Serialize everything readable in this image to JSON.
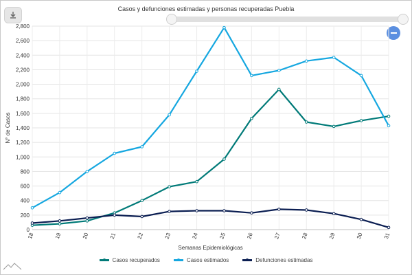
{
  "title": "Casos y defunciones estimadas y personas recuperadas Puebla",
  "icons": {
    "download": "download-icon",
    "zoom_out": "minus-icon",
    "logo": "mountain-logo-icon"
  },
  "chart_data": {
    "type": "line",
    "title": "Casos y defunciones estimadas y personas recuperadas Puebla",
    "xlabel": "Semanas Epidemiológicas",
    "ylabel": "N° de Casos",
    "x": [
      18,
      19,
      20,
      21,
      22,
      23,
      24,
      25,
      26,
      27,
      28,
      29,
      30,
      31
    ],
    "ylim": [
      0,
      2800
    ],
    "yticks": [
      0,
      200,
      400,
      600,
      800,
      1000,
      1200,
      1400,
      1600,
      1800,
      2000,
      2200,
      2400,
      2600,
      2800
    ],
    "ytick_labels": [
      "0",
      "200",
      "400",
      "600",
      "800",
      "1,000",
      "1,200",
      "1,400",
      "1,600",
      "1,800",
      "2,000",
      "2,200",
      "2,400",
      "2,600",
      "2,800"
    ],
    "grid": true,
    "legend_position": "bottom",
    "series": [
      {
        "name": "Casos recuperados",
        "color": "#007a78",
        "values": [
          60,
          80,
          120,
          230,
          400,
          590,
          660,
          970,
          1530,
          1930,
          1480,
          1420,
          1500,
          1560
        ]
      },
      {
        "name": "Casos estimados",
        "color": "#15a7e0",
        "values": [
          300,
          510,
          800,
          1050,
          1140,
          1580,
          2180,
          2780,
          2120,
          2190,
          2320,
          2370,
          2120,
          1430
        ]
      },
      {
        "name": "Defunciones estimadas",
        "color": "#0b1e52",
        "values": [
          90,
          120,
          160,
          200,
          180,
          250,
          260,
          260,
          230,
          280,
          270,
          220,
          140,
          30
        ]
      }
    ]
  }
}
